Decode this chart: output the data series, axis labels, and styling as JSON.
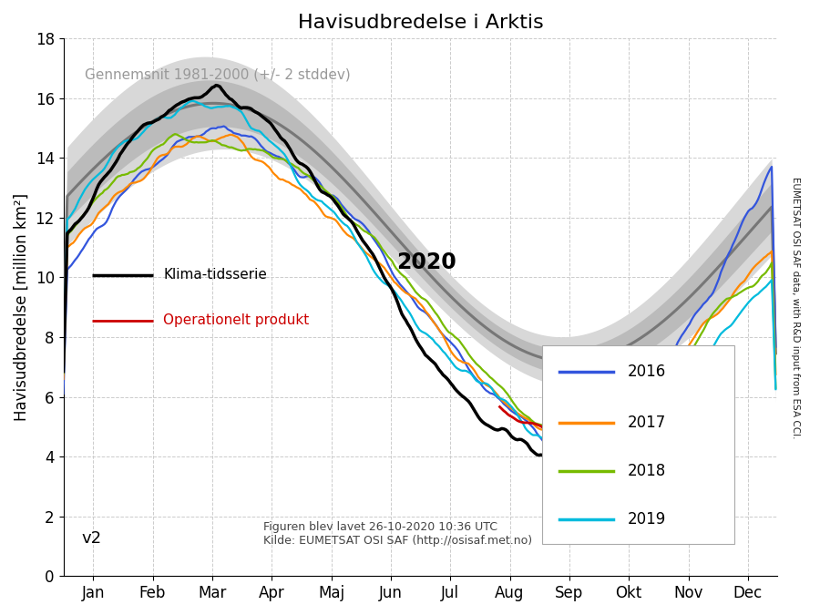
{
  "title": "Havisudbredelse i Arktis",
  "ylabel": "Havisudbredelse [million km²]",
  "subtitle": "Gennemsnit 1981-2000 (+/- 2 stddev)",
  "footnote_line1": "Figuren blev lavet 26-10-2020 10:36 UTC",
  "footnote_line2": "Kilde: EUMETSAT OSI SAF (http://osisaf.met.no)",
  "version_label": "v2",
  "right_label": "EUMETSAT OSI SAF data, with R&D input from ESA CCI.",
  "x_ticklabels": [
    "Jan",
    "Feb",
    "Mar",
    "Apr",
    "Maj",
    "Jun",
    "Jul",
    "Aug",
    "Sep",
    "Okt",
    "Nov",
    "Dec"
  ],
  "ylim": [
    0,
    18
  ],
  "yticks": [
    0,
    2,
    4,
    6,
    8,
    10,
    12,
    14,
    16,
    18
  ],
  "legend_years": [
    "2016",
    "2017",
    "2018",
    "2019"
  ],
  "legend_year_colors": [
    "#3355dd",
    "#ff8800",
    "#77bb00",
    "#00bbdd"
  ],
  "year2020_label": "2020",
  "color_2020_climate": "#000000",
  "color_2020_operational": "#cc0000",
  "color_clim_mean": "#777777",
  "color_clim_shade_outer": "#d8d8d8",
  "color_clim_shade_inner": "#bbbbbb",
  "background_color": "#ffffff",
  "grid_color": "#cccccc"
}
